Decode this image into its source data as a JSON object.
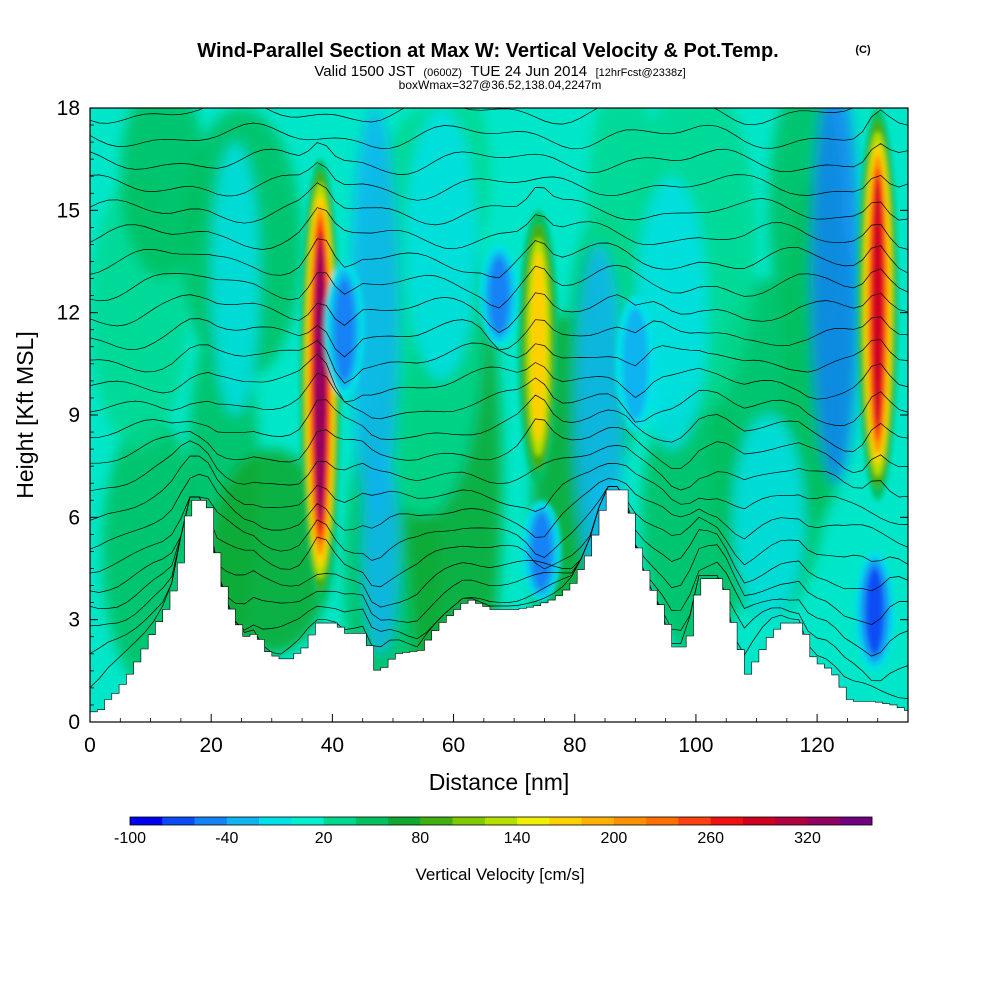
{
  "header": {
    "title": "Wind-Parallel Section at Max W: Vertical Velocity & Pot.Temp.",
    "copyright": "(C)",
    "valid_prefix": "Valid 1500 JST",
    "valid_utc": "(0600Z)",
    "valid_date": "TUE 24 Jun 2014",
    "forecast": "[12hrFcst@2338z]",
    "boxinfo": "boxWmax=327@36.52,138.04,2247m"
  },
  "chart_data": {
    "type": "heatmap",
    "title": "Wind-Parallel Section at Max W: Vertical Velocity & Pot.Temp.",
    "xlabel": "Distance [nm]",
    "ylabel": "Height [Kft MSL]",
    "xlim": [
      0,
      135
    ],
    "ylim": [
      0,
      18
    ],
    "x_ticks": [
      0,
      20,
      40,
      60,
      80,
      100,
      120
    ],
    "y_ticks": [
      0,
      3,
      6,
      9,
      12,
      15,
      18
    ],
    "colorbar": {
      "label": "Vertical Velocity [cm/s]",
      "tick_values": [
        "-100",
        "-40",
        "20",
        "80",
        "140",
        "200",
        "260",
        "320"
      ],
      "levels": [
        -100,
        -80,
        -60,
        -40,
        -20,
        0,
        20,
        40,
        60,
        80,
        100,
        120,
        140,
        160,
        180,
        200,
        220,
        240,
        260,
        280,
        300,
        320,
        340,
        360
      ],
      "colors": [
        "#0000f0",
        "#0a4bf5",
        "#1482f5",
        "#10b4f0",
        "#00e0e8",
        "#00f0d0",
        "#00d890",
        "#00c060",
        "#10a830",
        "#40b010",
        "#80c800",
        "#b4e000",
        "#f0f000",
        "#ffd000",
        "#ffb000",
        "#ff9000",
        "#ff7000",
        "#ff4010",
        "#f01010",
        "#d00020",
        "#b00040",
        "#900060",
        "#700080"
      ]
    },
    "terrain": [
      [
        0,
        0.3
      ],
      [
        1,
        0.3
      ],
      [
        2,
        0.6
      ],
      [
        4,
        0.9
      ],
      [
        6,
        1.4
      ],
      [
        8,
        2.0
      ],
      [
        10,
        2.7
      ],
      [
        12,
        3.3
      ],
      [
        14,
        4.2
      ],
      [
        16,
        6.5
      ],
      [
        19,
        6.5
      ],
      [
        21,
        4.3
      ],
      [
        23,
        3.2
      ],
      [
        25,
        2.5
      ],
      [
        27,
        2.6
      ],
      [
        29,
        2.0
      ],
      [
        32,
        1.8
      ],
      [
        35,
        2.2
      ],
      [
        37,
        2.9
      ],
      [
        40,
        2.9
      ],
      [
        42,
        2.6
      ],
      [
        45,
        2.6
      ],
      [
        47,
        1.4
      ],
      [
        50,
        2.0
      ],
      [
        54,
        2.1
      ],
      [
        56,
        2.6
      ],
      [
        58,
        3.0
      ],
      [
        62,
        3.6
      ],
      [
        66,
        3.3
      ],
      [
        70,
        3.3
      ],
      [
        73,
        3.4
      ],
      [
        76,
        3.6
      ],
      [
        79,
        4.0
      ],
      [
        82,
        5.0
      ],
      [
        85,
        6.8
      ],
      [
        88,
        6.8
      ],
      [
        90,
        5.1
      ],
      [
        92,
        4.0
      ],
      [
        94,
        3.3
      ],
      [
        96,
        2.2
      ],
      [
        98,
        2.2
      ],
      [
        99,
        3.0
      ],
      [
        100,
        4.2
      ],
      [
        104,
        4.2
      ],
      [
        106,
        2.6
      ],
      [
        108,
        1.4
      ],
      [
        110,
        2.0
      ],
      [
        112,
        2.6
      ],
      [
        114,
        2.9
      ],
      [
        117,
        2.9
      ],
      [
        119,
        1.8
      ],
      [
        122,
        1.5
      ],
      [
        125,
        0.6
      ],
      [
        129,
        0.6
      ],
      [
        132,
        0.5
      ],
      [
        135,
        0.3
      ]
    ],
    "updrafts": [
      {
        "x": 38.0,
        "y": [
          3.5,
          16.5
        ],
        "peak_cm_s": 327
      },
      {
        "x": 74.0,
        "y": [
          7.0,
          15.0
        ],
        "peak_cm_s": 160
      },
      {
        "x": 130.0,
        "y": [
          6.5,
          18.0
        ],
        "peak_cm_s": 300
      }
    ],
    "downdrafts": [
      {
        "x": 42.0,
        "y": [
          9.5,
          13.5
        ],
        "min_cm_s": -60
      },
      {
        "x": 67.5,
        "y": [
          11.0,
          14.0
        ],
        "min_cm_s": -60
      },
      {
        "x": 90.0,
        "y": [
          8.5,
          12.5
        ],
        "min_cm_s": -50
      },
      {
        "x": 129.5,
        "y": [
          1.5,
          5.0
        ],
        "min_cm_s": -90
      },
      {
        "x": 74.5,
        "y": [
          3.5,
          6.5
        ],
        "min_cm_s": -70
      }
    ],
    "theta_isentropes": {
      "count": 24,
      "units": "K"
    }
  }
}
